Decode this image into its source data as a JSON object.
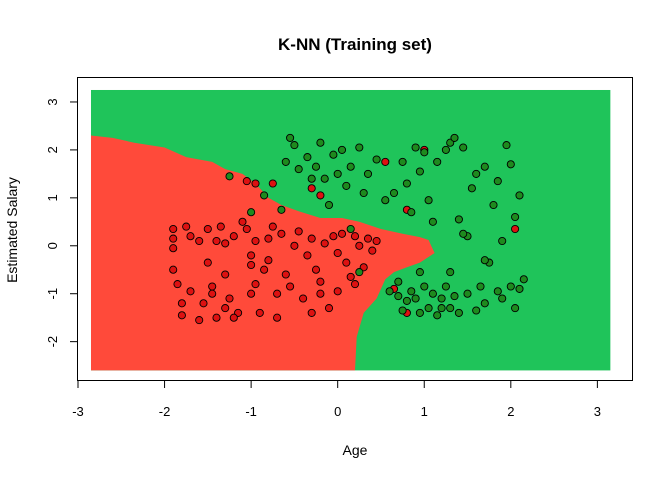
{
  "chart_data": {
    "type": "scatter",
    "title": "K-NN (Training set)",
    "xlabel": "Age",
    "ylabel": "Estimated Salary",
    "xlim": [
      -3.0,
      3.4
    ],
    "ylim": [
      -2.8,
      3.5
    ],
    "grid_extent": {
      "x": [
        -2.85,
        3.15
      ],
      "y": [
        -2.6,
        3.25
      ]
    },
    "x_ticks": [
      -3,
      -2,
      -1,
      0,
      1,
      2,
      3
    ],
    "y_ticks": [
      -2,
      -1,
      0,
      1,
      2,
      3
    ],
    "legend": "none",
    "regions": [
      {
        "class": 0,
        "color": "#FF4A3A",
        "boundary": [
          [
            -2.85,
            -2.6
          ],
          [
            0.2,
            -2.6
          ],
          [
            0.22,
            -1.9
          ],
          [
            0.3,
            -1.4
          ],
          [
            0.45,
            -1.1
          ],
          [
            0.55,
            -0.7
          ],
          [
            0.65,
            -0.55
          ],
          [
            0.8,
            -0.45
          ],
          [
            0.95,
            -0.35
          ],
          [
            1.12,
            -0.15
          ],
          [
            1.08,
            0.0
          ],
          [
            1.05,
            0.12
          ],
          [
            0.95,
            0.18
          ],
          [
            0.75,
            0.25
          ],
          [
            0.5,
            0.35
          ],
          [
            0.25,
            0.5
          ],
          [
            0.05,
            0.58
          ],
          [
            -0.2,
            0.58
          ],
          [
            -0.45,
            0.72
          ],
          [
            -0.65,
            0.85
          ],
          [
            -0.8,
            1.0
          ],
          [
            -0.95,
            1.3
          ],
          [
            -1.1,
            1.5
          ],
          [
            -1.3,
            1.6
          ],
          [
            -1.45,
            1.75
          ],
          [
            -1.75,
            1.85
          ],
          [
            -2.0,
            2.05
          ],
          [
            -2.35,
            2.15
          ],
          [
            -2.6,
            2.25
          ],
          [
            -2.85,
            2.3
          ]
        ]
      },
      {
        "class": 1,
        "color": "#1FC45A",
        "boundary": "rest"
      }
    ],
    "point_colors": {
      "0": "#DD1111",
      "1": "#1E8A1E"
    },
    "series": [
      {
        "class": 0,
        "points": [
          [
            -1.9,
            0.35
          ],
          [
            -1.9,
            0.15
          ],
          [
            -1.9,
            -0.05
          ],
          [
            -1.9,
            -0.5
          ],
          [
            -1.85,
            -0.8
          ],
          [
            -1.8,
            -1.2
          ],
          [
            -1.8,
            -1.45
          ],
          [
            -1.75,
            0.4
          ],
          [
            -1.7,
            -0.95
          ],
          [
            -1.7,
            0.2
          ],
          [
            -1.6,
            0.1
          ],
          [
            -1.6,
            -1.55
          ],
          [
            -1.55,
            -1.2
          ],
          [
            -1.5,
            0.35
          ],
          [
            -1.5,
            -0.35
          ],
          [
            -1.45,
            -1.0
          ],
          [
            -1.4,
            0.1
          ],
          [
            -1.4,
            -1.5
          ],
          [
            -1.35,
            0.4
          ],
          [
            -1.3,
            0.05
          ],
          [
            -1.3,
            -0.6
          ],
          [
            -1.25,
            -1.1
          ],
          [
            -1.2,
            0.2
          ],
          [
            -1.15,
            -1.4
          ],
          [
            -1.1,
            0.5
          ],
          [
            -1.05,
            0.35
          ],
          [
            -1.0,
            -0.2
          ],
          [
            -1.0,
            -0.4
          ],
          [
            -0.95,
            0.1
          ],
          [
            -0.95,
            -0.8
          ],
          [
            -0.9,
            -1.4
          ],
          [
            -0.85,
            -0.5
          ],
          [
            -0.8,
            0.15
          ],
          [
            -0.8,
            -0.3
          ],
          [
            -0.75,
            0.4
          ],
          [
            -0.7,
            -1.0
          ],
          [
            -0.65,
            0.25
          ],
          [
            -0.6,
            -0.6
          ],
          [
            -0.55,
            -0.85
          ],
          [
            -0.5,
            0.0
          ],
          [
            -0.45,
            0.3
          ],
          [
            -0.4,
            -1.1
          ],
          [
            -0.35,
            -0.2
          ],
          [
            -0.3,
            0.15
          ],
          [
            -0.25,
            -0.5
          ],
          [
            -0.2,
            -0.75
          ],
          [
            -0.15,
            0.05
          ],
          [
            -0.1,
            -1.3
          ],
          [
            -0.05,
            0.2
          ],
          [
            0.0,
            -0.15
          ],
          [
            0.05,
            0.25
          ],
          [
            0.1,
            -0.35
          ],
          [
            0.15,
            -0.65
          ],
          [
            0.2,
            0.2
          ],
          [
            0.25,
            0.0
          ],
          [
            0.3,
            -0.45
          ],
          [
            0.35,
            0.15
          ],
          [
            -1.3,
            -1.3
          ],
          [
            -1.2,
            -1.5
          ],
          [
            -1.0,
            -1.0
          ],
          [
            -0.7,
            -1.5
          ],
          [
            -0.3,
            -1.4
          ],
          [
            -0.2,
            -1.0
          ],
          [
            0.0,
            -0.95
          ],
          [
            0.2,
            -0.8
          ],
          [
            -1.05,
            1.35
          ],
          [
            -0.75,
            1.3
          ],
          [
            -0.3,
            1.2
          ],
          [
            -0.2,
            1.05
          ],
          [
            0.4,
            -0.1
          ],
          [
            0.45,
            0.1
          ],
          [
            0.55,
            1.75
          ],
          [
            1.0,
            2.0
          ],
          [
            0.8,
            0.75
          ],
          [
            0.65,
            -0.9
          ],
          [
            0.8,
            -1.4
          ],
          [
            2.05,
            0.35
          ],
          [
            -0.95,
            1.3
          ],
          [
            -1.45,
            -0.85
          ]
        ]
      },
      {
        "class": 1,
        "points": [
          [
            -0.6,
            1.75
          ],
          [
            -0.55,
            2.25
          ],
          [
            -0.5,
            2.1
          ],
          [
            -0.45,
            1.6
          ],
          [
            -0.35,
            1.85
          ],
          [
            -0.3,
            1.4
          ],
          [
            -0.25,
            1.65
          ],
          [
            -0.2,
            2.15
          ],
          [
            -0.15,
            1.4
          ],
          [
            -0.1,
            0.85
          ],
          [
            -0.05,
            1.9
          ],
          [
            0.0,
            1.5
          ],
          [
            0.05,
            2.0
          ],
          [
            0.1,
            1.25
          ],
          [
            0.15,
            1.65
          ],
          [
            0.25,
            2.05
          ],
          [
            0.3,
            1.1
          ],
          [
            0.35,
            1.5
          ],
          [
            0.45,
            1.8
          ],
          [
            0.55,
            0.95
          ],
          [
            0.65,
            1.1
          ],
          [
            0.75,
            1.75
          ],
          [
            0.8,
            1.3
          ],
          [
            0.85,
            0.7
          ],
          [
            0.9,
            2.05
          ],
          [
            0.95,
            1.55
          ],
          [
            1.0,
            1.95
          ],
          [
            1.05,
            0.95
          ],
          [
            1.1,
            0.5
          ],
          [
            1.15,
            1.75
          ],
          [
            1.25,
            2.0
          ],
          [
            1.3,
            2.15
          ],
          [
            1.35,
            2.25
          ],
          [
            1.4,
            0.55
          ],
          [
            1.45,
            2.05
          ],
          [
            1.5,
            0.2
          ],
          [
            1.55,
            1.2
          ],
          [
            1.6,
            1.5
          ],
          [
            1.7,
            1.65
          ],
          [
            1.75,
            -0.35
          ],
          [
            1.8,
            0.85
          ],
          [
            1.85,
            1.35
          ],
          [
            1.9,
            0.1
          ],
          [
            1.95,
            2.1
          ],
          [
            2.0,
            1.7
          ],
          [
            2.05,
            0.6
          ],
          [
            2.1,
            1.05
          ],
          [
            -1.0,
            0.7
          ],
          [
            -1.25,
            1.45
          ],
          [
            -0.85,
            1.05
          ],
          [
            -0.65,
            0.75
          ],
          [
            0.15,
            0.35
          ],
          [
            0.25,
            -0.55
          ],
          [
            0.6,
            -0.95
          ],
          [
            0.7,
            -1.05
          ],
          [
            0.75,
            -1.35
          ],
          [
            0.8,
            -1.15
          ],
          [
            0.85,
            -0.95
          ],
          [
            0.9,
            -1.1
          ],
          [
            0.95,
            -1.4
          ],
          [
            1.0,
            -0.85
          ],
          [
            1.05,
            -1.3
          ],
          [
            1.1,
            -1.0
          ],
          [
            1.15,
            -1.45
          ],
          [
            1.2,
            -1.1
          ],
          [
            1.25,
            -0.85
          ],
          [
            1.3,
            -1.3
          ],
          [
            1.35,
            -1.05
          ],
          [
            1.4,
            -1.4
          ],
          [
            1.5,
            -1.0
          ],
          [
            1.6,
            -1.35
          ],
          [
            1.65,
            -0.85
          ],
          [
            1.7,
            -1.2
          ],
          [
            1.85,
            -0.95
          ],
          [
            1.9,
            -1.1
          ],
          [
            2.0,
            -0.85
          ],
          [
            2.05,
            -1.3
          ],
          [
            2.1,
            -0.9
          ],
          [
            2.15,
            -0.7
          ],
          [
            0.7,
            -0.75
          ],
          [
            0.95,
            -0.55
          ],
          [
            1.2,
            -1.3
          ],
          [
            1.3,
            -0.55
          ],
          [
            1.45,
            0.25
          ],
          [
            1.7,
            -0.3
          ]
        ]
      }
    ]
  }
}
